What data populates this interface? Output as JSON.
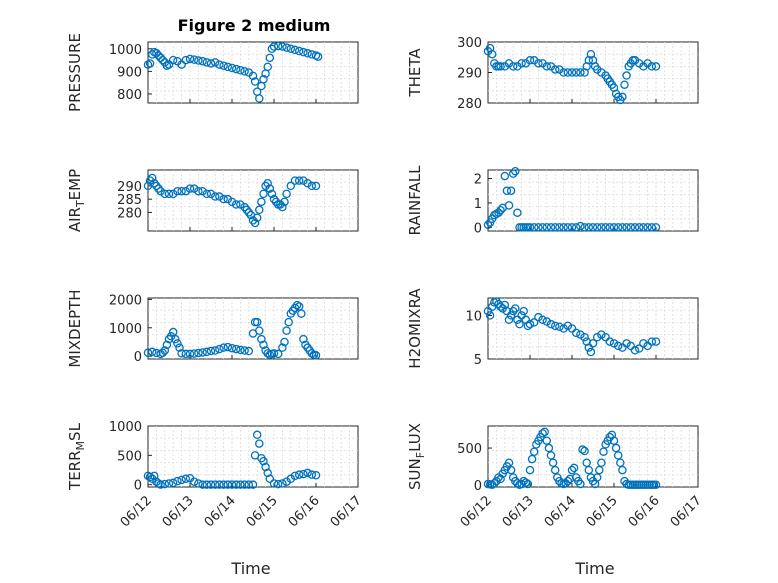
{
  "title": "Figure 2 medium",
  "xlabel": "Time",
  "x_tick_labels": [
    "06/12",
    "06/13",
    "06/14",
    "06/15",
    "06/16",
    "06/17"
  ],
  "marker_color": "#0072BD",
  "chart_data": [
    {
      "type": "scatter",
      "ylabel": "PRESSURE",
      "xlim": [
        0,
        5
      ],
      "ylim": [
        760,
        1030
      ],
      "yticks": [
        800,
        900,
        1000
      ],
      "grid": true,
      "x": [
        0.0,
        0.05,
        0.1,
        0.15,
        0.2,
        0.25,
        0.3,
        0.35,
        0.4,
        0.45,
        0.5,
        0.6,
        0.7,
        0.8,
        0.9,
        1.0,
        1.1,
        1.2,
        1.3,
        1.4,
        1.5,
        1.6,
        1.7,
        1.8,
        1.9,
        2.0,
        2.1,
        2.2,
        2.3,
        2.4,
        2.5,
        2.55,
        2.6,
        2.65,
        2.7,
        2.75,
        2.8,
        2.85,
        2.9,
        2.95,
        3.0,
        3.1,
        3.2,
        3.3,
        3.4,
        3.5,
        3.6,
        3.7,
        3.8,
        3.9,
        4.0,
        4.05
      ],
      "y": [
        930,
        935,
        975,
        985,
        980,
        970,
        960,
        950,
        940,
        925,
        930,
        950,
        945,
        930,
        950,
        955,
        952,
        948,
        945,
        940,
        935,
        940,
        930,
        925,
        920,
        915,
        910,
        905,
        900,
        895,
        880,
        855,
        810,
        780,
        835,
        865,
        890,
        920,
        960,
        1000,
        1010,
        1012,
        1010,
        1005,
        1000,
        995,
        990,
        985,
        980,
        975,
        970,
        965
      ]
    },
    {
      "type": "scatter",
      "ylabel": "THETA",
      "xlim": [
        0,
        5
      ],
      "ylim": [
        280,
        300
      ],
      "yticks": [
        280,
        290,
        300
      ],
      "grid": true,
      "x": [
        0.0,
        0.05,
        0.1,
        0.15,
        0.2,
        0.25,
        0.3,
        0.4,
        0.5,
        0.6,
        0.7,
        0.8,
        0.9,
        1.0,
        1.1,
        1.2,
        1.3,
        1.4,
        1.5,
        1.6,
        1.7,
        1.8,
        1.9,
        2.0,
        2.1,
        2.2,
        2.3,
        2.35,
        2.4,
        2.45,
        2.5,
        2.55,
        2.6,
        2.7,
        2.8,
        2.85,
        2.9,
        2.95,
        3.0,
        3.05,
        3.1,
        3.15,
        3.2,
        3.25,
        3.3,
        3.35,
        3.4,
        3.45,
        3.5,
        3.6,
        3.7,
        3.8,
        3.9,
        4.0
      ],
      "y": [
        297,
        298,
        296,
        293,
        292,
        292,
        292,
        292,
        293,
        292,
        292,
        293,
        293,
        294,
        294,
        293,
        293,
        292,
        292,
        291,
        291,
        290,
        290,
        290,
        290,
        290,
        290,
        292,
        294,
        296,
        294,
        292,
        291,
        290,
        289,
        288,
        287,
        286,
        285,
        283,
        282,
        281,
        282,
        286,
        289,
        292,
        293,
        294,
        294,
        293,
        292,
        293,
        292,
        292
      ]
    },
    {
      "type": "scatter",
      "ylabel": "AIR_TEMP",
      "xlim": [
        0,
        5
      ],
      "ylim": [
        273,
        296
      ],
      "yticks": [
        280,
        285,
        290
      ],
      "grid": true,
      "x": [
        0.0,
        0.05,
        0.1,
        0.15,
        0.2,
        0.25,
        0.3,
        0.4,
        0.5,
        0.6,
        0.7,
        0.8,
        0.9,
        1.0,
        1.1,
        1.2,
        1.3,
        1.4,
        1.5,
        1.6,
        1.7,
        1.8,
        1.9,
        2.0,
        2.1,
        2.2,
        2.3,
        2.35,
        2.4,
        2.45,
        2.5,
        2.55,
        2.6,
        2.65,
        2.7,
        2.75,
        2.8,
        2.85,
        2.9,
        2.95,
        3.0,
        3.05,
        3.1,
        3.15,
        3.2,
        3.25,
        3.3,
        3.4,
        3.5,
        3.6,
        3.7,
        3.8,
        3.9,
        4.0
      ],
      "y": [
        290,
        292,
        293,
        291,
        290,
        289,
        288,
        287,
        287,
        287,
        288,
        288,
        288,
        289,
        289,
        288,
        288,
        287,
        287,
        286,
        286,
        285,
        285,
        284,
        283,
        283,
        282,
        281,
        280,
        279,
        277,
        276,
        278,
        281,
        284,
        287,
        290,
        291,
        289,
        287,
        285,
        284,
        283,
        283,
        282,
        284,
        287,
        290,
        292,
        292,
        292,
        291,
        290,
        290
      ]
    },
    {
      "type": "scatter",
      "ylabel": "RAINFALL",
      "xlim": [
        0,
        5
      ],
      "ylim": [
        -0.15,
        2.35
      ],
      "yticks": [
        0,
        1,
        2
      ],
      "grid": true,
      "x": [
        0.0,
        0.05,
        0.1,
        0.15,
        0.2,
        0.25,
        0.3,
        0.35,
        0.4,
        0.45,
        0.5,
        0.55,
        0.6,
        0.65,
        0.7,
        0.75,
        0.8,
        0.85,
        0.9,
        0.95,
        1.0,
        1.1,
        1.2,
        1.3,
        1.4,
        1.5,
        1.6,
        1.7,
        1.8,
        1.9,
        2.0,
        2.1,
        2.2,
        2.3,
        2.4,
        2.5,
        2.6,
        2.7,
        2.8,
        2.9,
        3.0,
        3.1,
        3.2,
        3.3,
        3.4,
        3.5,
        3.6,
        3.7,
        3.8,
        3.9,
        4.0
      ],
      "y": [
        0.1,
        0.2,
        0.35,
        0.5,
        0.55,
        0.6,
        0.7,
        0.8,
        2.1,
        1.5,
        0.9,
        1.5,
        2.2,
        2.3,
        0.6,
        0,
        0,
        0,
        0,
        0,
        0,
        0,
        0,
        0,
        0,
        0,
        0,
        0,
        0,
        0,
        0,
        0,
        0.05,
        0,
        0,
        0,
        0,
        0,
        0,
        0,
        0,
        0,
        0,
        0,
        0,
        0,
        0,
        0,
        0,
        0,
        0
      ]
    },
    {
      "type": "scatter",
      "ylabel": "MIXDEPTH",
      "xlim": [
        0,
        5
      ],
      "ylim": [
        -100,
        2050
      ],
      "yticks": [
        0,
        1000,
        2000
      ],
      "grid": true,
      "x": [
        0.0,
        0.1,
        0.2,
        0.3,
        0.35,
        0.4,
        0.45,
        0.5,
        0.55,
        0.6,
        0.65,
        0.7,
        0.75,
        0.8,
        0.9,
        1.0,
        1.1,
        1.2,
        1.3,
        1.4,
        1.5,
        1.6,
        1.7,
        1.8,
        1.9,
        2.0,
        2.1,
        2.2,
        2.3,
        2.4,
        2.5,
        2.55,
        2.6,
        2.65,
        2.7,
        2.75,
        2.8,
        2.85,
        2.9,
        2.95,
        3.0,
        3.1,
        3.2,
        3.25,
        3.3,
        3.35,
        3.4,
        3.45,
        3.5,
        3.55,
        3.6,
        3.65,
        3.7,
        3.75,
        3.8,
        3.85,
        3.9,
        3.95,
        4.0
      ],
      "y": [
        120,
        150,
        110,
        80,
        120,
        200,
        400,
        600,
        700,
        850,
        600,
        450,
        300,
        100,
        80,
        80,
        90,
        110,
        130,
        150,
        180,
        200,
        250,
        300,
        320,
        280,
        250,
        220,
        200,
        180,
        800,
        1200,
        1200,
        900,
        600,
        400,
        200,
        100,
        50,
        80,
        100,
        80,
        300,
        500,
        900,
        1200,
        1500,
        1600,
        1700,
        1800,
        1750,
        1500,
        600,
        400,
        300,
        200,
        100,
        50,
        30
      ]
    },
    {
      "type": "scatter",
      "ylabel": "H2OMIXRA",
      "xlim": [
        0,
        5
      ],
      "ylim": [
        5,
        12
      ],
      "yticks": [
        5,
        10
      ],
      "grid": true,
      "x": [
        0.0,
        0.05,
        0.1,
        0.15,
        0.2,
        0.25,
        0.3,
        0.35,
        0.4,
        0.45,
        0.5,
        0.55,
        0.6,
        0.65,
        0.7,
        0.75,
        0.8,
        0.85,
        0.9,
        0.95,
        1.0,
        1.1,
        1.2,
        1.3,
        1.4,
        1.5,
        1.6,
        1.7,
        1.8,
        1.9,
        2.0,
        2.1,
        2.2,
        2.3,
        2.35,
        2.4,
        2.45,
        2.5,
        2.6,
        2.7,
        2.8,
        2.9,
        3.0,
        3.1,
        3.2,
        3.3,
        3.4,
        3.5,
        3.6,
        3.7,
        3.8,
        3.9,
        4.0
      ],
      "y": [
        10.5,
        10,
        11,
        11.5,
        11.6,
        11.3,
        11,
        10.8,
        11.2,
        10.5,
        9.5,
        10,
        10.5,
        10.8,
        9.5,
        9,
        10,
        10.5,
        9.5,
        8.8,
        9,
        9.2,
        9.8,
        9.5,
        9.3,
        9,
        8.8,
        8.7,
        8.5,
        8.8,
        8.5,
        8,
        7.8,
        7.5,
        7,
        6.3,
        5.8,
        6.8,
        7.5,
        7.8,
        7.5,
        7,
        6.8,
        6.5,
        6.3,
        6.8,
        6.5,
        6,
        6.2,
        6.8,
        6.5,
        7,
        7
      ]
    },
    {
      "type": "scatter",
      "ylabel": "TERR_MSL",
      "xlim": [
        0,
        5
      ],
      "ylim": [
        -40,
        1000
      ],
      "yticks": [
        0,
        500,
        1000
      ],
      "grid": true,
      "x": [
        0.0,
        0.05,
        0.1,
        0.15,
        0.2,
        0.25,
        0.3,
        0.4,
        0.5,
        0.6,
        0.7,
        0.8,
        0.9,
        1.0,
        1.1,
        1.2,
        1.3,
        1.4,
        1.5,
        1.6,
        1.7,
        1.8,
        1.9,
        2.0,
        2.1,
        2.2,
        2.3,
        2.4,
        2.5,
        2.55,
        2.6,
        2.65,
        2.7,
        2.75,
        2.8,
        2.85,
        2.9,
        3.0,
        3.1,
        3.2,
        3.3,
        3.4,
        3.5,
        3.6,
        3.7,
        3.8,
        3.9,
        4.0
      ],
      "y": [
        150,
        130,
        100,
        150,
        50,
        20,
        0,
        10,
        20,
        30,
        60,
        80,
        100,
        110,
        50,
        20,
        0,
        0,
        0,
        0,
        0,
        0,
        0,
        0,
        0,
        0,
        0,
        0,
        0,
        500,
        850,
        700,
        450,
        400,
        300,
        200,
        100,
        20,
        10,
        20,
        50,
        100,
        150,
        170,
        180,
        200,
        170,
        160
      ]
    },
    {
      "type": "scatter",
      "ylabel": "SUN_FLUX",
      "xlim": [
        0,
        5
      ],
      "ylim": [
        -30,
        800
      ],
      "yticks": [
        0,
        500
      ],
      "grid": true,
      "x": [
        0.0,
        0.05,
        0.1,
        0.15,
        0.2,
        0.25,
        0.3,
        0.35,
        0.4,
        0.45,
        0.5,
        0.55,
        0.6,
        0.65,
        0.7,
        0.75,
        0.8,
        0.85,
        0.9,
        0.95,
        1.0,
        1.05,
        1.1,
        1.15,
        1.2,
        1.25,
        1.3,
        1.35,
        1.4,
        1.45,
        1.5,
        1.55,
        1.6,
        1.65,
        1.7,
        1.75,
        1.8,
        1.85,
        1.9,
        1.95,
        2.0,
        2.05,
        2.1,
        2.15,
        2.2,
        2.25,
        2.3,
        2.35,
        2.4,
        2.45,
        2.5,
        2.55,
        2.6,
        2.65,
        2.7,
        2.75,
        2.8,
        2.85,
        2.9,
        2.95,
        3.0,
        3.05,
        3.1,
        3.15,
        3.2,
        3.25,
        3.3,
        3.35,
        3.4,
        3.45,
        3.5,
        3.55,
        3.6,
        3.65,
        3.7,
        3.75,
        3.8,
        3.85,
        3.9,
        3.95,
        4.0
      ],
      "y": [
        10,
        5,
        0,
        20,
        50,
        100,
        80,
        150,
        200,
        250,
        300,
        200,
        100,
        50,
        20,
        0,
        10,
        50,
        30,
        10,
        200,
        350,
        450,
        550,
        600,
        650,
        700,
        720,
        600,
        500,
        400,
        300,
        200,
        100,
        50,
        20,
        10,
        20,
        50,
        80,
        200,
        230,
        100,
        50,
        10,
        480,
        460,
        300,
        200,
        100,
        50,
        10,
        100,
        200,
        300,
        450,
        550,
        600,
        650,
        680,
        600,
        500,
        400,
        300,
        200,
        50,
        10,
        0,
        0,
        0,
        0,
        0,
        0,
        0,
        0,
        0,
        0,
        0,
        0,
        0,
        0
      ]
    }
  ]
}
